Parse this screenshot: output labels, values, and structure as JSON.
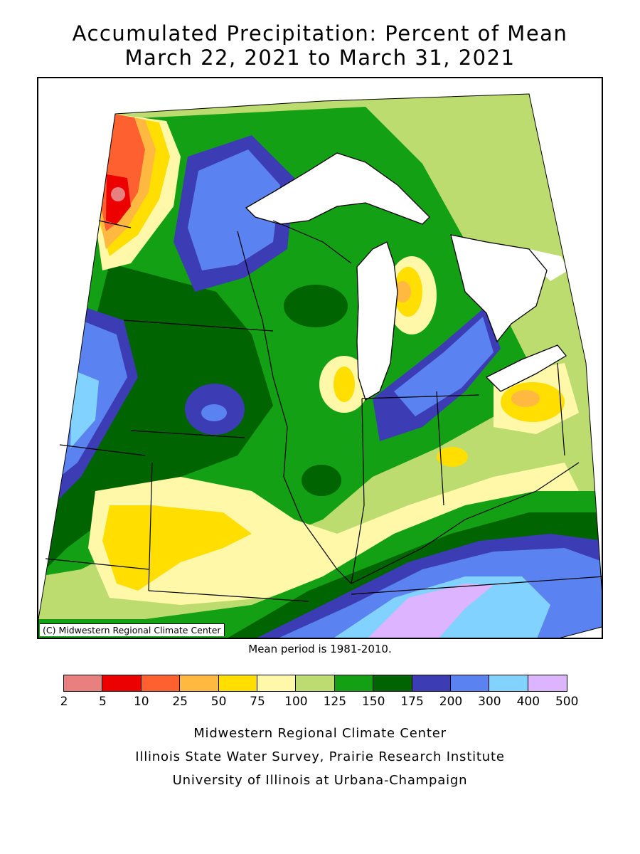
{
  "title": {
    "line1": "Accumulated Precipitation: Percent of Mean",
    "line2": "March 22, 2021 to March 31, 2021"
  },
  "copyright": "(C) Midwestern Regional Climate Center",
  "mean_note": "Mean period is 1981-2010.",
  "legend": {
    "colors": [
      "#e88080",
      "#ec0000",
      "#ff6030",
      "#ffb840",
      "#ffde00",
      "#fff8a8",
      "#bcdc70",
      "#14a014",
      "#006400",
      "#3c3cb4",
      "#5a82f0",
      "#82d2ff",
      "#dcb4ff"
    ],
    "labels": [
      "2",
      "5",
      "10",
      "25",
      "50",
      "75",
      "100",
      "125",
      "150",
      "175",
      "200",
      "300",
      "400",
      "500"
    ]
  },
  "credits": [
    "Midwestern Regional Climate Center",
    "Illinois State Water Survey, Prairie Research Institute",
    "University of Illinois at Urbana-Champaign"
  ],
  "map": {
    "colors": {
      "light_green": "#bcdc70",
      "green": "#14a014",
      "dark_green": "#006400",
      "light_yellow": "#fff8a8",
      "yellow": "#ffde00",
      "orange": "#ffb840",
      "red_orange": "#ff6030",
      "red": "#ec0000",
      "pink": "#e88080",
      "dark_blue": "#3c3cb4",
      "blue": "#5a82f0",
      "light_blue": "#82d2ff",
      "lavender": "#dcb4ff",
      "water": "#ffffff"
    }
  }
}
